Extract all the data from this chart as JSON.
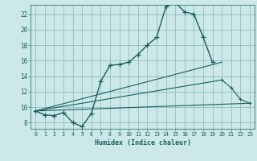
{
  "xlabel": "Humidex (Indice chaleur)",
  "bg_color": "#cce8e8",
  "grid_color": "#99c4c4",
  "line_color": "#1a5f5f",
  "spine_color": "#5a9090",
  "xlim": [
    -0.5,
    23.5
  ],
  "ylim": [
    7.2,
    23.2
  ],
  "xtick_labels": [
    "0",
    "1",
    "2",
    "3",
    "4",
    "5",
    "6",
    "7",
    "8",
    "9",
    "10",
    "11",
    "12",
    "13",
    "14",
    "15",
    "16",
    "17",
    "18",
    "19",
    "20",
    "21",
    "22",
    "23"
  ],
  "xtick_vals": [
    0,
    1,
    2,
    3,
    4,
    5,
    6,
    7,
    8,
    9,
    10,
    11,
    12,
    13,
    14,
    15,
    16,
    17,
    18,
    19,
    20,
    21,
    22,
    23
  ],
  "yticks": [
    8,
    10,
    12,
    14,
    16,
    18,
    20,
    22
  ],
  "main_x": [
    0,
    1,
    2,
    3,
    4,
    5,
    6,
    7,
    8,
    9,
    10,
    11,
    12,
    13,
    14,
    15,
    16,
    17,
    18,
    19,
    20,
    21,
    22,
    23
  ],
  "main_y": [
    9.5,
    9.0,
    8.9,
    9.3,
    8.0,
    7.5,
    9.2,
    13.3,
    15.4,
    15.5,
    15.8,
    16.8,
    18.0,
    19.0,
    23.0,
    23.5,
    22.3,
    22.0,
    19.0,
    15.8,
    null,
    null,
    null,
    null
  ],
  "line1_x": [
    0,
    23
  ],
  "line1_y": [
    9.5,
    10.5
  ],
  "line2_x": [
    0,
    20,
    21,
    22,
    23
  ],
  "line2_y": [
    9.5,
    13.5,
    12.5,
    11.0,
    10.5
  ],
  "line3_x": [
    0,
    20
  ],
  "line3_y": [
    9.5,
    15.8
  ]
}
